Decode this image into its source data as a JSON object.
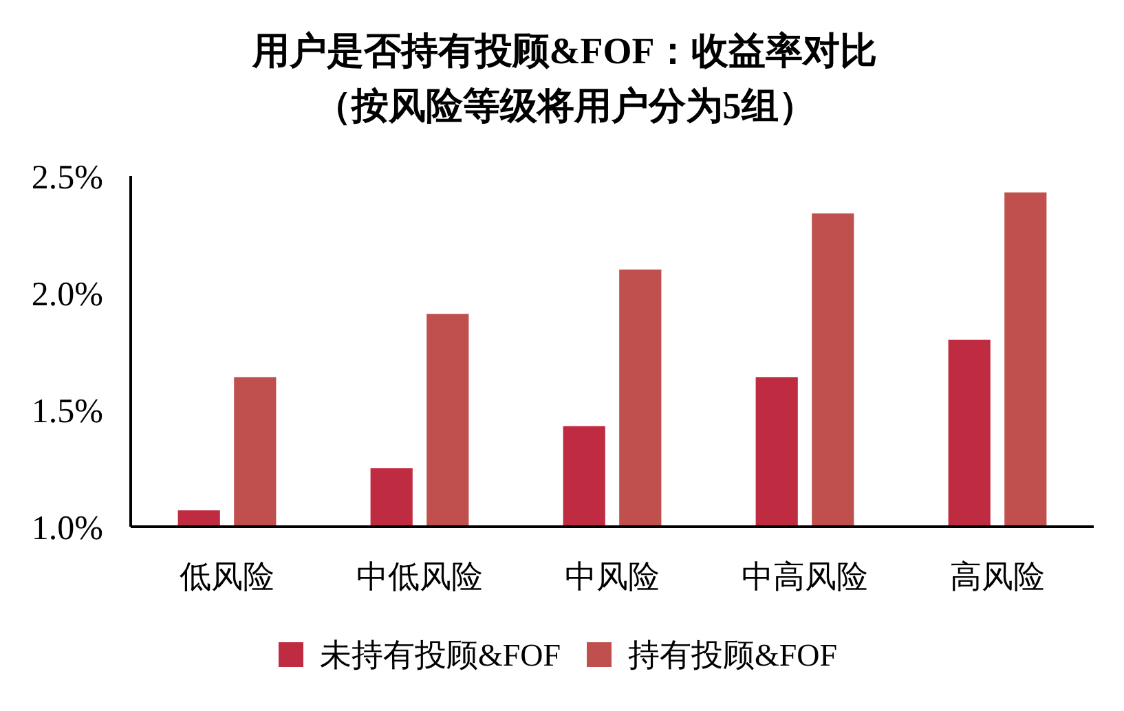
{
  "chart_data": {
    "type": "bar",
    "title": "用户是否持有投顾&FOF：收益率对比",
    "subtitle": "（按风险等级将用户分为5组）",
    "categories": [
      "低风险",
      "中低风险",
      "中风险",
      "中高风险",
      "高风险"
    ],
    "series": [
      {
        "name": "未持有投顾&FOF",
        "color": "#bf2b40",
        "values": [
          1.07,
          1.25,
          1.43,
          1.64,
          1.8
        ]
      },
      {
        "name": "持有投顾&FOF",
        "color": "#c0504d",
        "values": [
          1.64,
          1.91,
          2.1,
          2.34,
          2.43
        ]
      }
    ],
    "ylim": [
      1.0,
      2.5
    ],
    "yticks": [
      {
        "value": 1.0,
        "label": "1.0%"
      },
      {
        "value": 1.5,
        "label": "1.5%"
      },
      {
        "value": 2.0,
        "label": "2.0%"
      },
      {
        "value": 2.5,
        "label": "2.5%"
      }
    ],
    "grid": false,
    "legend": "bottom"
  }
}
